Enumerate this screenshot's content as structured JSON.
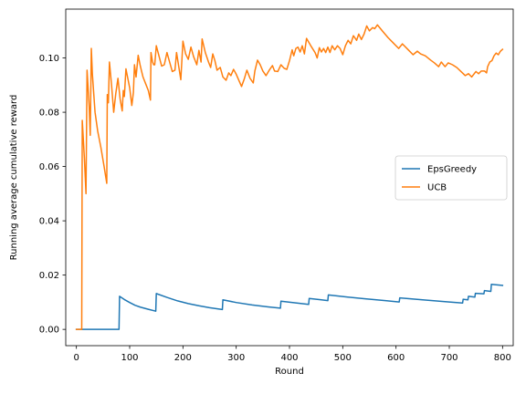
{
  "chart_data": {
    "type": "line",
    "title": "",
    "xlabel": "Round",
    "ylabel": "Running average cumulative reward",
    "xlim": [
      -20,
      820
    ],
    "ylim": [
      -0.006,
      0.118
    ],
    "xticks": [
      0,
      100,
      200,
      300,
      400,
      500,
      600,
      700,
      800
    ],
    "yticks": [
      0.0,
      0.02,
      0.04,
      0.06,
      0.08,
      0.1
    ],
    "ytick_labels": [
      "0.00",
      "0.02",
      "0.04",
      "0.06",
      "0.08",
      "0.10"
    ],
    "grid": false,
    "legend_position": "center-right",
    "series": [
      {
        "name": "EpsGreedy",
        "color": "#1f77b4",
        "points": [
          [
            0,
            0.0
          ],
          [
            80,
            0.0
          ],
          [
            81,
            0.0122
          ],
          [
            90,
            0.011
          ],
          [
            100,
            0.0099
          ],
          [
            110,
            0.0089
          ],
          [
            120,
            0.0082
          ],
          [
            135,
            0.0074
          ],
          [
            149,
            0.0067
          ],
          [
            150,
            0.0132
          ],
          [
            170,
            0.0118
          ],
          [
            190,
            0.0105
          ],
          [
            210,
            0.0095
          ],
          [
            230,
            0.0087
          ],
          [
            250,
            0.008
          ],
          [
            274,
            0.0073
          ],
          [
            275,
            0.0109
          ],
          [
            300,
            0.0099
          ],
          [
            330,
            0.009
          ],
          [
            360,
            0.0083
          ],
          [
            383,
            0.0078
          ],
          [
            384,
            0.0104
          ],
          [
            410,
            0.0098
          ],
          [
            436,
            0.0092
          ],
          [
            437,
            0.0114
          ],
          [
            460,
            0.0109
          ],
          [
            472,
            0.0106
          ],
          [
            473,
            0.0127
          ],
          [
            500,
            0.0121
          ],
          [
            540,
            0.0113
          ],
          [
            580,
            0.0106
          ],
          [
            606,
            0.0101
          ],
          [
            607,
            0.0116
          ],
          [
            650,
            0.0109
          ],
          [
            700,
            0.0101
          ],
          [
            725,
            0.0097
          ],
          [
            726,
            0.0111
          ],
          [
            735,
            0.0109
          ],
          [
            736,
            0.0122
          ],
          [
            748,
            0.0119
          ],
          [
            749,
            0.0133
          ],
          [
            765,
            0.0131
          ],
          [
            766,
            0.0143
          ],
          [
            778,
            0.014
          ],
          [
            779,
            0.0166
          ],
          [
            790,
            0.0164
          ],
          [
            800,
            0.0162
          ]
        ]
      },
      {
        "name": "UCB",
        "color": "#ff7f0e",
        "points": [
          [
            0,
            0.0
          ],
          [
            10,
            0.0
          ],
          [
            11,
            0.077
          ],
          [
            15,
            0.063
          ],
          [
            18,
            0.05
          ],
          [
            20,
            0.0955
          ],
          [
            24,
            0.082
          ],
          [
            26,
            0.0715
          ],
          [
            28,
            0.1035
          ],
          [
            30,
            0.094
          ],
          [
            35,
            0.08
          ],
          [
            40,
            0.073
          ],
          [
            46,
            0.067
          ],
          [
            52,
            0.06
          ],
          [
            57,
            0.0538
          ],
          [
            58,
            0.0865
          ],
          [
            60,
            0.0835
          ],
          [
            62,
            0.0985
          ],
          [
            66,
            0.09
          ],
          [
            70,
            0.08
          ],
          [
            74,
            0.087
          ],
          [
            78,
            0.0925
          ],
          [
            82,
            0.085
          ],
          [
            86,
            0.0805
          ],
          [
            88,
            0.088
          ],
          [
            90,
            0.0858
          ],
          [
            93,
            0.096
          ],
          [
            97,
            0.092
          ],
          [
            100,
            0.089
          ],
          [
            104,
            0.0825
          ],
          [
            107,
            0.0873
          ],
          [
            109,
            0.0975
          ],
          [
            112,
            0.093
          ],
          [
            116,
            0.101
          ],
          [
            120,
            0.097
          ],
          [
            125,
            0.093
          ],
          [
            130,
            0.0905
          ],
          [
            135,
            0.088
          ],
          [
            139,
            0.0845
          ],
          [
            140,
            0.102
          ],
          [
            143,
            0.0985
          ],
          [
            145,
            0.0975
          ],
          [
            147,
            0.0975
          ],
          [
            150,
            0.1045
          ],
          [
            156,
            0.1
          ],
          [
            160,
            0.097
          ],
          [
            165,
            0.0975
          ],
          [
            170,
            0.102
          ],
          [
            175,
            0.0985
          ],
          [
            180,
            0.095
          ],
          [
            185,
            0.0955
          ],
          [
            188,
            0.102
          ],
          [
            192,
            0.097
          ],
          [
            196,
            0.092
          ],
          [
            200,
            0.1062
          ],
          [
            205,
            0.1015
          ],
          [
            210,
            0.0995
          ],
          [
            215,
            0.104
          ],
          [
            220,
            0.1005
          ],
          [
            226,
            0.0975
          ],
          [
            230,
            0.1028
          ],
          [
            234,
            0.0985
          ],
          [
            236,
            0.107
          ],
          [
            242,
            0.102
          ],
          [
            248,
            0.0985
          ],
          [
            252,
            0.0965
          ],
          [
            256,
            0.1015
          ],
          [
            260,
            0.099
          ],
          [
            264,
            0.0955
          ],
          [
            270,
            0.0965
          ],
          [
            275,
            0.093
          ],
          [
            281,
            0.0918
          ],
          [
            286,
            0.0945
          ],
          [
            290,
            0.0935
          ],
          [
            295,
            0.0958
          ],
          [
            300,
            0.094
          ],
          [
            310,
            0.0895
          ],
          [
            315,
            0.0922
          ],
          [
            320,
            0.0955
          ],
          [
            326,
            0.0925
          ],
          [
            332,
            0.0908
          ],
          [
            335,
            0.0952
          ],
          [
            340,
            0.0992
          ],
          [
            345,
            0.0975
          ],
          [
            350,
            0.0952
          ],
          [
            356,
            0.0935
          ],
          [
            362,
            0.0955
          ],
          [
            368,
            0.0972
          ],
          [
            372,
            0.0952
          ],
          [
            378,
            0.095
          ],
          [
            384,
            0.0975
          ],
          [
            390,
            0.0962
          ],
          [
            395,
            0.0958
          ],
          [
            400,
            0.099
          ],
          [
            405,
            0.103
          ],
          [
            408,
            0.1008
          ],
          [
            412,
            0.1035
          ],
          [
            416,
            0.104
          ],
          [
            420,
            0.1022
          ],
          [
            424,
            0.1045
          ],
          [
            428,
            0.1015
          ],
          [
            432,
            0.1072
          ],
          [
            440,
            0.1045
          ],
          [
            448,
            0.102
          ],
          [
            452,
            0.1
          ],
          [
            456,
            0.1038
          ],
          [
            460,
            0.1022
          ],
          [
            464,
            0.1035
          ],
          [
            468,
            0.102
          ],
          [
            472,
            0.104
          ],
          [
            476,
            0.102
          ],
          [
            480,
            0.1045
          ],
          [
            485,
            0.103
          ],
          [
            490,
            0.1045
          ],
          [
            495,
            0.1035
          ],
          [
            500,
            0.1012
          ],
          [
            505,
            0.1045
          ],
          [
            510,
            0.1065
          ],
          [
            515,
            0.1052
          ],
          [
            520,
            0.1082
          ],
          [
            526,
            0.1065
          ],
          [
            530,
            0.1088
          ],
          [
            535,
            0.1068
          ],
          [
            540,
            0.1088
          ],
          [
            545,
            0.1118
          ],
          [
            550,
            0.11
          ],
          [
            556,
            0.1112
          ],
          [
            560,
            0.1108
          ],
          [
            565,
            0.1122
          ],
          [
            575,
            0.1098
          ],
          [
            585,
            0.1075
          ],
          [
            595,
            0.1055
          ],
          [
            605,
            0.1035
          ],
          [
            612,
            0.1052
          ],
          [
            622,
            0.1032
          ],
          [
            632,
            0.1012
          ],
          [
            640,
            0.1025
          ],
          [
            646,
            0.1015
          ],
          [
            655,
            0.1008
          ],
          [
            665,
            0.0992
          ],
          [
            672,
            0.0982
          ],
          [
            680,
            0.0968
          ],
          [
            685,
            0.0985
          ],
          [
            692,
            0.0968
          ],
          [
            698,
            0.0982
          ],
          [
            706,
            0.0975
          ],
          [
            714,
            0.0965
          ],
          [
            722,
            0.095
          ],
          [
            730,
            0.0935
          ],
          [
            736,
            0.0942
          ],
          [
            742,
            0.093
          ],
          [
            750,
            0.095
          ],
          [
            755,
            0.0942
          ],
          [
            760,
            0.0952
          ],
          [
            766,
            0.0952
          ],
          [
            770,
            0.0945
          ],
          [
            772,
            0.0968
          ],
          [
            776,
            0.0985
          ],
          [
            780,
            0.099
          ],
          [
            784,
            0.1008
          ],
          [
            788,
            0.1018
          ],
          [
            792,
            0.1012
          ],
          [
            796,
            0.1025
          ],
          [
            800,
            0.1032
          ]
        ]
      }
    ]
  }
}
